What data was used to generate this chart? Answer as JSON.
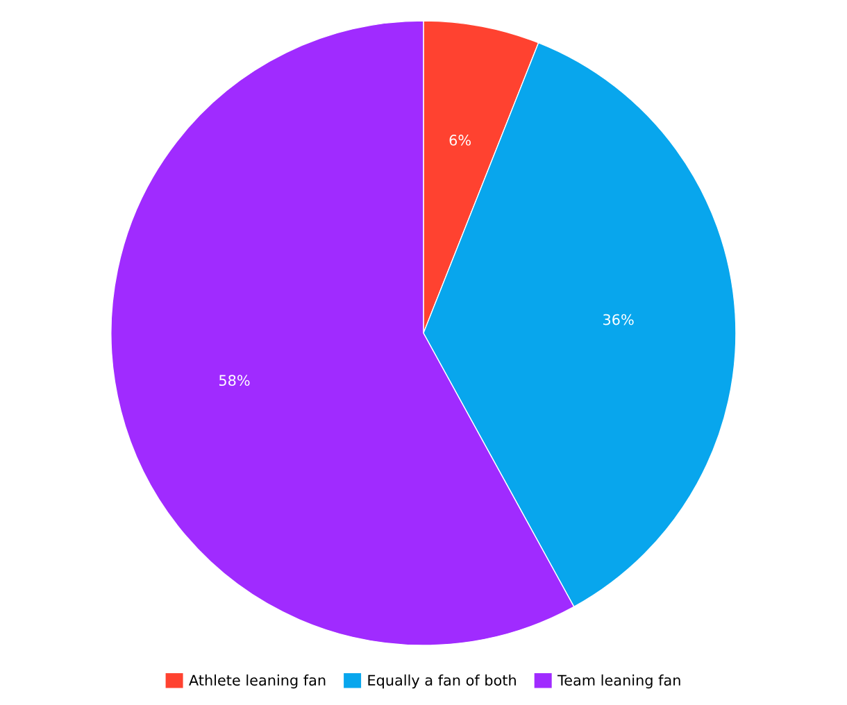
{
  "chart_data": {
    "type": "pie",
    "categories": [
      "Athlete leaning fan",
      "Equally a fan of both",
      "Team leaning fan"
    ],
    "values": [
      6,
      36,
      58
    ],
    "colors": [
      "#ff4230",
      "#08a6ed",
      "#a02bff"
    ],
    "value_labels": [
      "6%",
      "36%",
      "58%"
    ],
    "legend": "bottom"
  }
}
